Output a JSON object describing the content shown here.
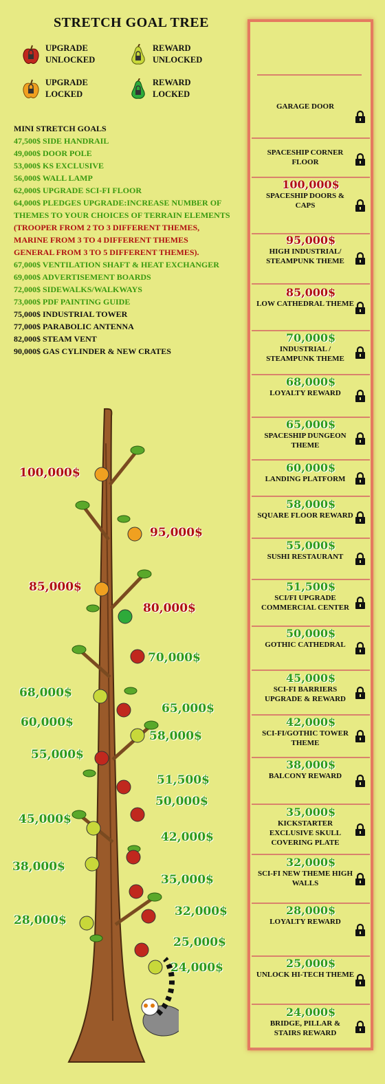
{
  "title": "STRETCH GOAL TREE",
  "legend": [
    {
      "label": "UPGRADE UNLOCKED",
      "color": "#c0281e"
    },
    {
      "label": "REWARD UNLOCKED",
      "color": "#c8d83a"
    },
    {
      "label": "UPGRADE LOCKED",
      "color": "#f0a020"
    },
    {
      "label": "REWARD LOCKED",
      "color": "#2eaa3a"
    }
  ],
  "mini": {
    "header": "MINI STRETCH GOALS",
    "items": [
      "47,500$ SIDE HANDRAIL",
      "49,000$ DOOR POLE",
      "53,000$ KS EXCLUSIVE",
      "56,000$ WALL LAMP",
      "62,000$ UPGRADE SCI-FI FLOOR",
      "64,000$ PLEDGES UPGRADE:INCREASE NUMBER OF",
      "THEMES TO YOUR CHOICES OF TERRAIN ELEMENTS",
      "(TROOPER FROM 2 TO 3 DIFFERENT THEMES,",
      " MARINE FROM 3 TO 4 DIFFERENT THEMES",
      "GENERAL FROM 3 TO 5 DIFFERENT THEMES).",
      "67,000$ VENTILATION SHAFT & HEAT EXCHANGER",
      "69,000$ ADVERTISEMENT BOARDS",
      "72,000$ SIDEWALKS/WALKWAYS",
      "73,000$ PDF PAINTING GUIDE",
      "75,000$ INDUSTRIAL TOWER",
      "77,000$ PARABOLIC ANTENNA",
      "82,000$ STEAM VENT",
      "90,000$ GAS CYLINDER & NEW CRATES"
    ]
  },
  "goals": [
    {
      "amount": "",
      "desc": "GARAGE DOOR",
      "color": "#b01010"
    },
    {
      "amount": "",
      "desc": "SPACESHIP CORNER FLOOR",
      "color": "#b01010"
    },
    {
      "amount": "100,000$",
      "desc": "SPACESHIP DOORS & CAPS",
      "color": "#b01010"
    },
    {
      "amount": "95,000$",
      "desc": "HIGH INDUSTRIAL/ STEAMPUNK THEME",
      "color": "#b01010"
    },
    {
      "amount": "85,000$",
      "desc": "LOW CATHEDRAL THEME",
      "color": "#b01010"
    },
    {
      "amount": "70,000$",
      "desc": "INDUSTRIAL / STEAMPUNK THEME",
      "color": "#2e9a1a"
    },
    {
      "amount": "68,000$",
      "desc": "LOYALTY REWARD",
      "color": "#2e9a1a"
    },
    {
      "amount": "65,000$",
      "desc": "SPACESHIP DUNGEON THEME",
      "color": "#2e9a1a"
    },
    {
      "amount": "60,000$",
      "desc": "LANDING PLATFORM",
      "color": "#2e9a1a"
    },
    {
      "amount": "58,000$",
      "desc": "SQUARE FLOOR REWARD",
      "color": "#2e9a1a"
    },
    {
      "amount": "55,000$",
      "desc": "SUSHI RESTAURANT",
      "color": "#2e9a1a"
    },
    {
      "amount": "51,500$",
      "desc": "SCI/FI UPGRADE COMMERCIAL CENTER",
      "color": "#2e9a1a"
    },
    {
      "amount": "50,000$",
      "desc": "GOTHIC CATHEDRAL",
      "color": "#2e9a1a"
    },
    {
      "amount": "45,000$",
      "desc": "SCI-FI  BARRIERS UPGRADE & REWARD",
      "color": "#2e9a1a"
    },
    {
      "amount": "42,000$",
      "desc": "SCI-FI/GOTHIC TOWER THEME",
      "color": "#2e9a1a"
    },
    {
      "amount": "38,000$",
      "desc": "BALCONY REWARD",
      "color": "#2e9a1a"
    },
    {
      "amount": "35,000$",
      "desc": "KICKSTARTER EXCLUSIVE SKULL COVERING PLATE",
      "color": "#2e9a1a"
    },
    {
      "amount": "32,000$",
      "desc": "SCI-FI NEW THEME HIGH WALLS",
      "color": "#2e9a1a"
    },
    {
      "amount": "28,000$",
      "desc": "LOYALTY REWARD",
      "color": "#2e9a1a"
    },
    {
      "amount": "25,000$",
      "desc": "UNLOCK HI-TECH THEME",
      "color": "#2e9a1a"
    },
    {
      "amount": "24,000$",
      "desc": "BRIDGE, PILLAR & STAIRS REWARD",
      "color": "#2e9a1a"
    }
  ],
  "tree_labels": [
    {
      "text": "100,000$",
      "color": "#b01010"
    },
    {
      "text": "95,000$",
      "color": "#b01010"
    },
    {
      "text": "85,000$",
      "color": "#b01010"
    },
    {
      "text": "80,000$",
      "color": "#b01010"
    },
    {
      "text": "70,000$",
      "color": "#2e9a1a"
    },
    {
      "text": "68,000$",
      "color": "#2e9a1a"
    },
    {
      "text": "65,000$",
      "color": "#2e9a1a"
    },
    {
      "text": "60,000$",
      "color": "#2e9a1a"
    },
    {
      "text": "58,000$",
      "color": "#2e9a1a"
    },
    {
      "text": "55,000$",
      "color": "#2e9a1a"
    },
    {
      "text": "51,500$",
      "color": "#2e9a1a"
    },
    {
      "text": "50,000$",
      "color": "#2e9a1a"
    },
    {
      "text": "45,000$",
      "color": "#2e9a1a"
    },
    {
      "text": "42,000$",
      "color": "#2e9a1a"
    },
    {
      "text": "38,000$",
      "color": "#2e9a1a"
    },
    {
      "text": "35,000$",
      "color": "#2e9a1a"
    },
    {
      "text": "32,000$",
      "color": "#2e9a1a"
    },
    {
      "text": "28,000$",
      "color": "#2e9a1a"
    },
    {
      "text": "25,000$",
      "color": "#2e9a1a"
    },
    {
      "text": "24,000$",
      "color": "#2e9a1a"
    }
  ]
}
